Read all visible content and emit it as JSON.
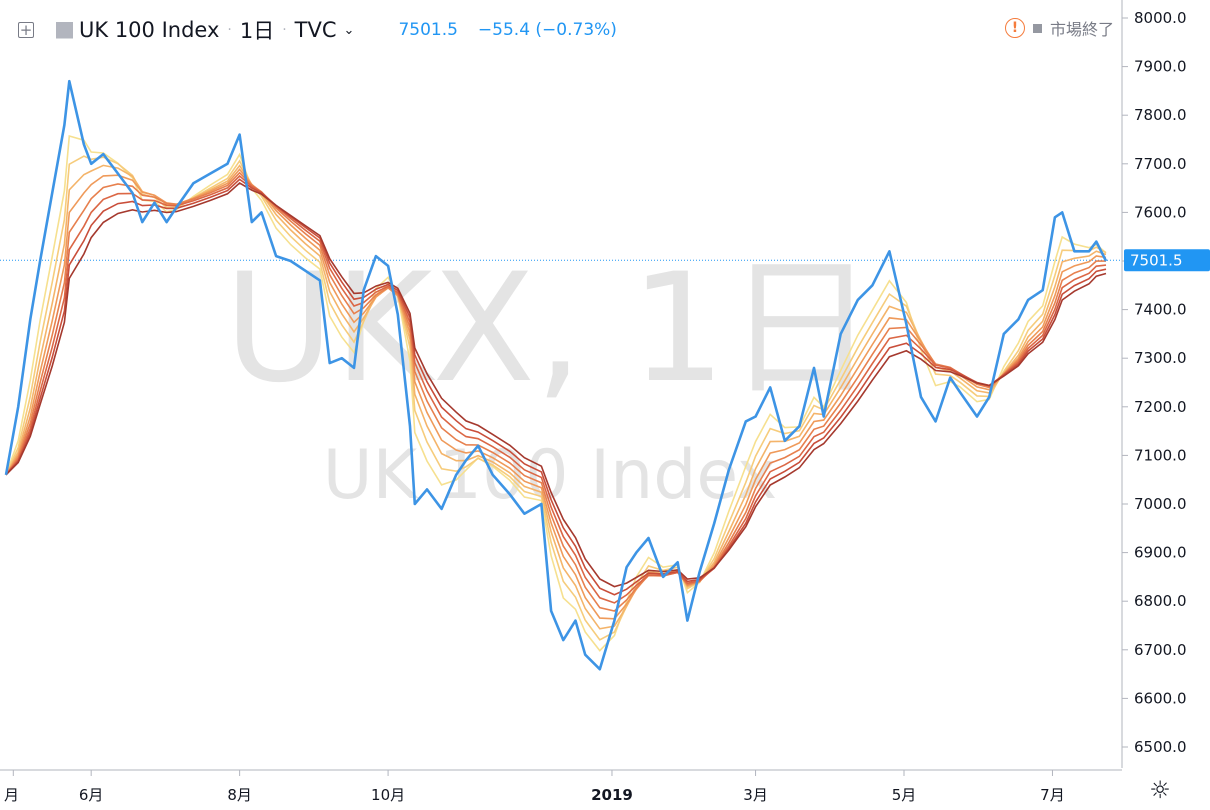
{
  "header": {
    "symbol_name": "UK 100 Index",
    "interval": "1日",
    "exchange": "TVC",
    "last_price": "7501.5",
    "change": "−55.4 (−0.73%)",
    "market_status": "市場終了",
    "separator": "·"
  },
  "icons": {
    "expand": "plus-square-icon",
    "flag": "flag-icon",
    "warning": "exclamation-circle-icon",
    "settings": "gear-icon"
  },
  "watermark": {
    "line1": "UKX, 1日",
    "line2": "UK 100 Index"
  },
  "colors": {
    "price_line": "#3d94e5",
    "price_label_bg": "#2196f3",
    "ribbon": [
      "#f6e08f",
      "#f6cc7c",
      "#f4b46a",
      "#ef9a5a",
      "#e7804e",
      "#db6745",
      "#c94e3a",
      "#a5392e"
    ]
  },
  "chart_data": {
    "type": "line",
    "title": "UK 100 Index",
    "x_tick_labels": [
      "月",
      "6月",
      "8月",
      "10月",
      "2019",
      "3月",
      "5月",
      "7月"
    ],
    "y_tick_labels": [
      "8000.0",
      "7900.0",
      "7800.0",
      "7700.0",
      "7600.0",
      "7500.0",
      "7400.0",
      "7300.0",
      "7200.0",
      "7100.0",
      "7000.0",
      "6900.0",
      "6800.0",
      "6700.0",
      "6600.0",
      "6500.0"
    ],
    "ylim": [
      6460,
      8030
    ],
    "last_value": 7501.5,
    "last_value_label": "7501.5",
    "series": [
      {
        "name": "UKX",
        "x": [
          "2018-04-27",
          "2018-05-02",
          "2018-05-07",
          "2018-05-11",
          "2018-05-16",
          "2018-05-21",
          "2018-05-23",
          "2018-05-29",
          "2018-06-01",
          "2018-06-06",
          "2018-06-12",
          "2018-06-18",
          "2018-06-22",
          "2018-06-27",
          "2018-07-02",
          "2018-07-06",
          "2018-07-13",
          "2018-07-20",
          "2018-07-27",
          "2018-08-01",
          "2018-08-06",
          "2018-08-10",
          "2018-08-16",
          "2018-08-22",
          "2018-08-28",
          "2018-09-03",
          "2018-09-07",
          "2018-09-12",
          "2018-09-17",
          "2018-09-21",
          "2018-09-26",
          "2018-10-01",
          "2018-10-05",
          "2018-10-10",
          "2018-10-12",
          "2018-10-17",
          "2018-10-23",
          "2018-10-29",
          "2018-11-02",
          "2018-11-07",
          "2018-11-13",
          "2018-11-20",
          "2018-11-26",
          "2018-12-03",
          "2018-12-07",
          "2018-12-12",
          "2018-12-17",
          "2018-12-21",
          "2018-12-27",
          "2019-01-02",
          "2019-01-07",
          "2019-01-11",
          "2019-01-16",
          "2019-01-22",
          "2019-01-28",
          "2019-02-01",
          "2019-02-06",
          "2019-02-12",
          "2019-02-18",
          "2019-02-25",
          "2019-03-01",
          "2019-03-07",
          "2019-03-13",
          "2019-03-19",
          "2019-03-25",
          "2019-03-29",
          "2019-04-05",
          "2019-04-12",
          "2019-04-18",
          "2019-04-25",
          "2019-05-02",
          "2019-05-08",
          "2019-05-14",
          "2019-05-20",
          "2019-05-24",
          "2019-05-31",
          "2019-06-05",
          "2019-06-11",
          "2019-06-17",
          "2019-06-21",
          "2019-06-27",
          "2019-07-02",
          "2019-07-05",
          "2019-07-10",
          "2019-07-16",
          "2019-07-19",
          "2019-07-23"
        ],
        "values": [
          7060,
          7200,
          7380,
          7500,
          7640,
          7780,
          7870,
          7740,
          7700,
          7720,
          7680,
          7640,
          7580,
          7620,
          7580,
          7610,
          7660,
          7680,
          7700,
          7760,
          7580,
          7600,
          7510,
          7500,
          7480,
          7460,
          7290,
          7300,
          7280,
          7440,
          7510,
          7490,
          7390,
          7160,
          7000,
          7030,
          6990,
          7060,
          7090,
          7120,
          7060,
          7020,
          6980,
          7000,
          6780,
          6720,
          6760,
          6690,
          6660,
          6760,
          6870,
          6900,
          6930,
          6850,
          6880,
          6760,
          6860,
          6960,
          7070,
          7170,
          7180,
          7240,
          7130,
          7160,
          7280,
          7180,
          7350,
          7420,
          7450,
          7520,
          7370,
          7220,
          7170,
          7260,
          7230,
          7180,
          7220,
          7350,
          7380,
          7420,
          7440,
          7590,
          7600,
          7520,
          7520,
          7540,
          7500
        ]
      }
    ]
  }
}
